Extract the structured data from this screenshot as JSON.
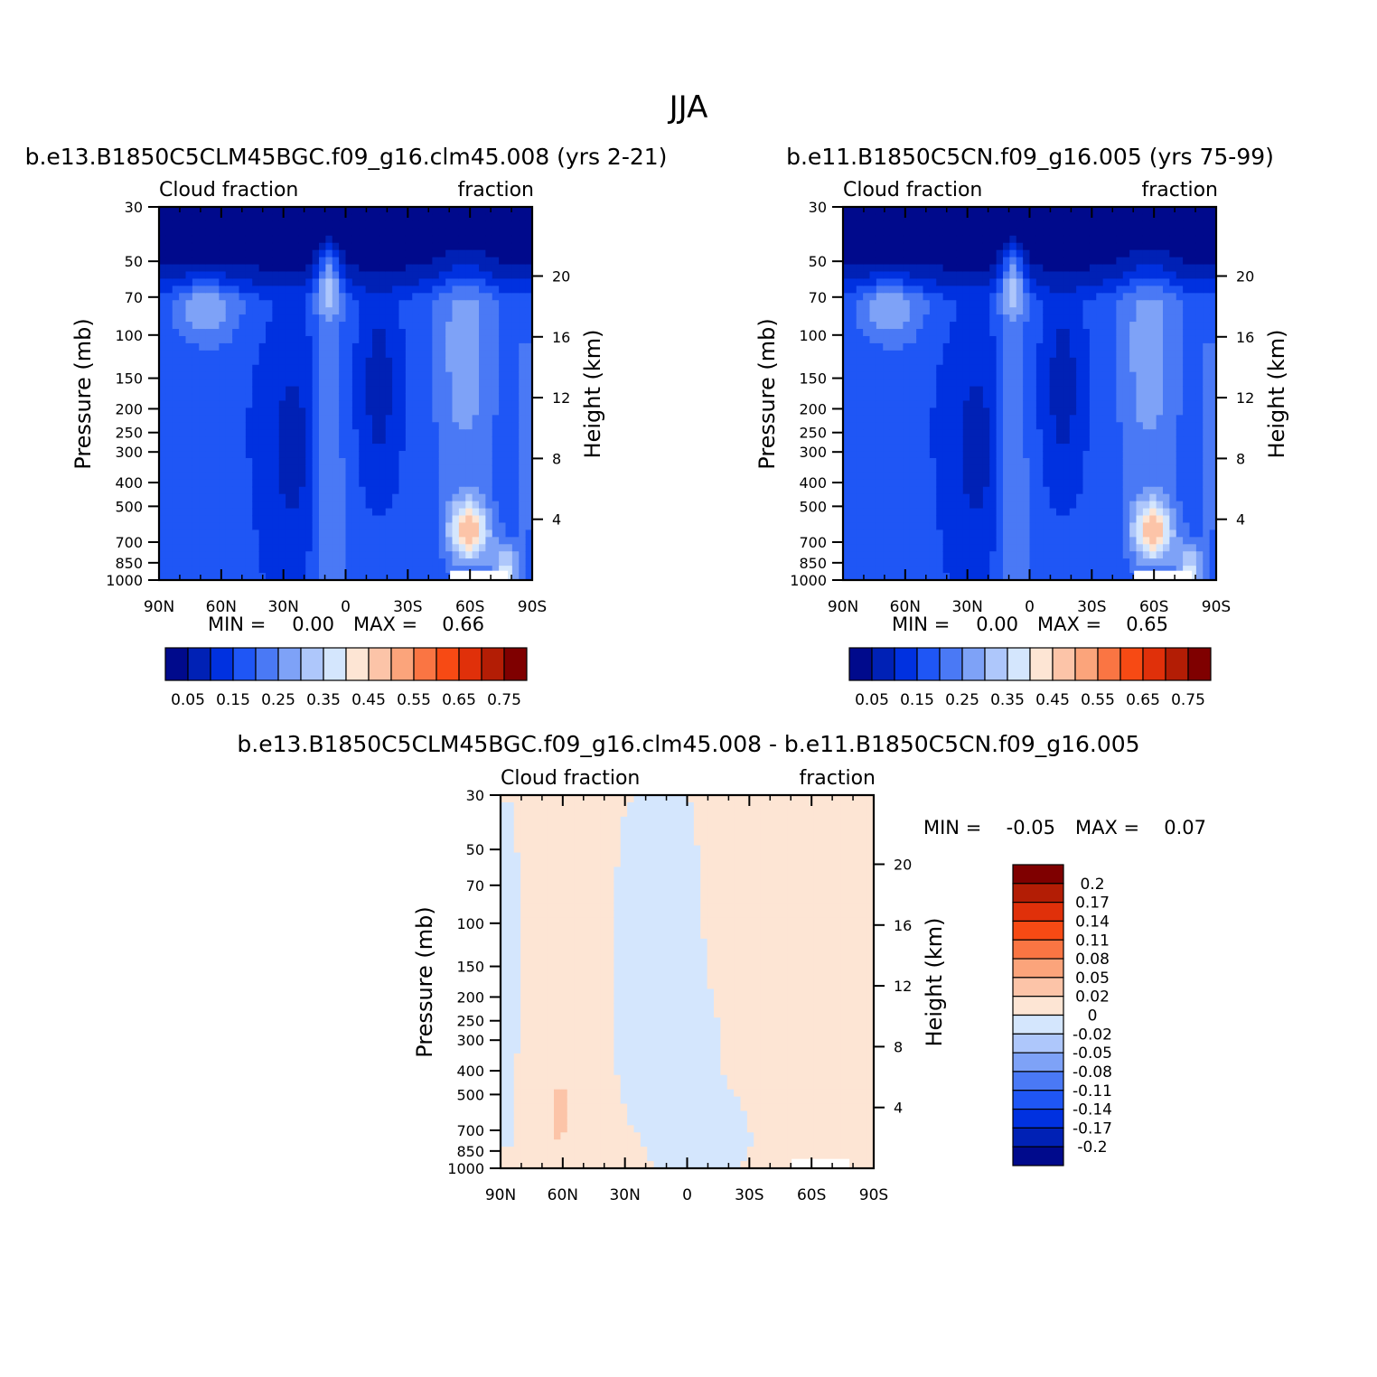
{
  "figure": {
    "title": "JJA"
  },
  "colors": {
    "abs": [
      "#000a8c",
      "#0021b5",
      "#0031e0",
      "#1f56f5",
      "#4a79f5",
      "#7ea2f7",
      "#aec7fb",
      "#d4e6fd",
      "#fde5d4",
      "#fcc4a8",
      "#fba47b",
      "#fa7543",
      "#f74a14",
      "#e0300a",
      "#b31d05",
      "#7f0000"
    ],
    "diff": [
      "#000a8c",
      "#0021b5",
      "#0031e0",
      "#1f56f5",
      "#4a79f5",
      "#7ea2f7",
      "#aec7fb",
      "#d4e6fd",
      "#fde5d4",
      "#fcc4a8",
      "#fba47b",
      "#fa7543",
      "#f74a14",
      "#e0300a",
      "#b31d05",
      "#7f0000"
    ]
  },
  "chart_data": [
    {
      "type": "heatmap",
      "title": "b.e13.B1850C5CLM45BGC.f09_g16.clm45.008 (yrs 2-21)",
      "left_label": "Cloud fraction",
      "right_label": "fraction",
      "xlabel": "",
      "ylabel": "Pressure (mb)",
      "y2label": "Height (km)",
      "x_ticks": [
        "90N",
        "60N",
        "30N",
        "0",
        "30S",
        "60S",
        "90S"
      ],
      "y_ticks": [
        "30",
        "50",
        "70",
        "100",
        "150",
        "200",
        "250",
        "300",
        "400",
        "500",
        "700",
        "850",
        "1000"
      ],
      "y2_ticks": [
        "20",
        "16",
        "12",
        "8",
        "4"
      ],
      "min_label": "MIN =",
      "min_value": "0.00",
      "max_label": "MAX =",
      "max_value": "0.66",
      "colorbar_labels": [
        "0.05",
        "0.15",
        "0.25",
        "0.35",
        "0.45",
        "0.55",
        "0.65",
        "0.75"
      ]
    },
    {
      "type": "heatmap",
      "title": "b.e11.B1850C5CN.f09_g16.005 (yrs 75-99)",
      "left_label": "Cloud fraction",
      "right_label": "fraction",
      "xlabel": "",
      "ylabel": "Pressure (mb)",
      "y2label": "Height (km)",
      "x_ticks": [
        "90N",
        "60N",
        "30N",
        "0",
        "30S",
        "60S",
        "90S"
      ],
      "y_ticks": [
        "30",
        "50",
        "70",
        "100",
        "150",
        "200",
        "250",
        "300",
        "400",
        "500",
        "700",
        "850",
        "1000"
      ],
      "y2_ticks": [
        "20",
        "16",
        "12",
        "8",
        "4"
      ],
      "min_label": "MIN =",
      "min_value": "0.00",
      "max_label": "MAX =",
      "max_value": "0.65",
      "colorbar_labels": [
        "0.05",
        "0.15",
        "0.25",
        "0.35",
        "0.45",
        "0.55",
        "0.65",
        "0.75"
      ]
    },
    {
      "type": "heatmap",
      "title": "b.e13.B1850C5CLM45BGC.f09_g16.clm45.008 - b.e11.B1850C5CN.f09_g16.005",
      "left_label": "Cloud fraction",
      "right_label": "fraction",
      "xlabel": "",
      "ylabel": "Pressure (mb)",
      "y2label": "Height (km)",
      "x_ticks": [
        "90N",
        "60N",
        "30N",
        "0",
        "30S",
        "60S",
        "90S"
      ],
      "y_ticks": [
        "30",
        "50",
        "70",
        "100",
        "150",
        "200",
        "250",
        "300",
        "400",
        "500",
        "700",
        "850",
        "1000"
      ],
      "y2_ticks": [
        "20",
        "16",
        "12",
        "8",
        "4"
      ],
      "min_label": "MIN =",
      "min_value": "-0.05",
      "max_label": "MAX =",
      "max_value": "0.07",
      "colorbar_labels": [
        "0.2",
        "0.17",
        "0.14",
        "0.11",
        "0.08",
        "0.05",
        "0.02",
        "0",
        "-0.02",
        "-0.05",
        "-0.08",
        "-0.11",
        "-0.14",
        "-0.17",
        "-0.2"
      ]
    }
  ]
}
